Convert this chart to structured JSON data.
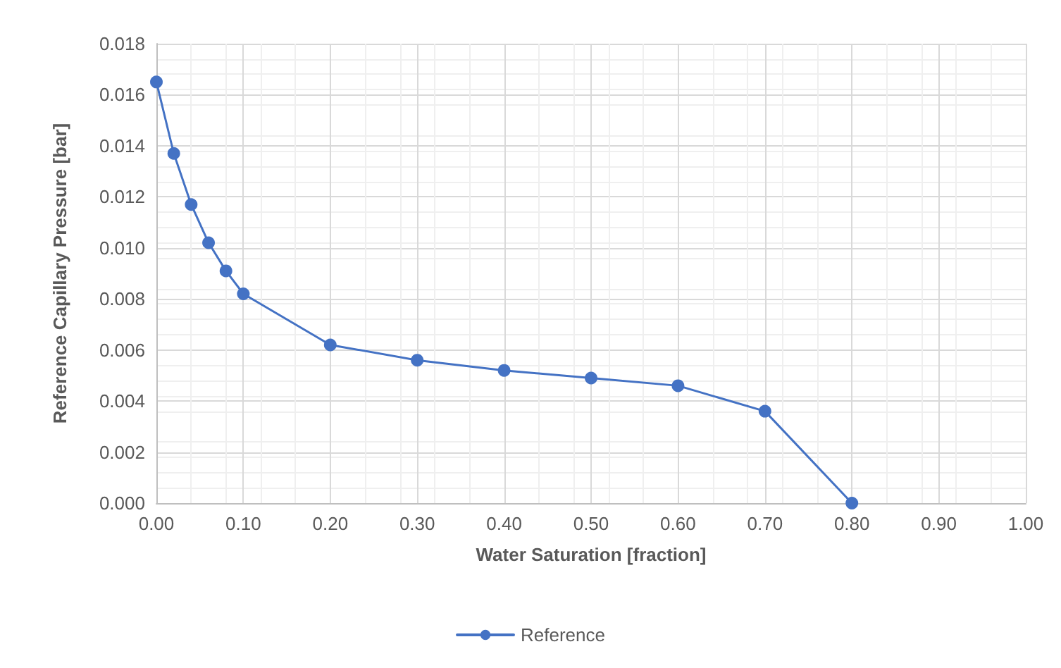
{
  "chart_data": {
    "type": "line",
    "xlabel": "Water Saturation [fraction]",
    "ylabel": "Reference Capillary Pressure [bar]",
    "series": [
      {
        "name": "Reference",
        "color": "#4472c4",
        "x": [
          0,
          0.02,
          0.04,
          0.06,
          0.08,
          0.1,
          0.2,
          0.3,
          0.4,
          0.5,
          0.6,
          0.7,
          0.8
        ],
        "values": [
          0.0165,
          0.0137,
          0.0117,
          0.0102,
          0.0091,
          0.0082,
          0.0062,
          0.0056,
          0.0052,
          0.0049,
          0.0046,
          0.0036,
          0
        ]
      }
    ],
    "xlim": [
      0,
      1
    ],
    "xticks": [
      {
        "value": 0,
        "label": "0.00"
      },
      {
        "value": 0.1,
        "label": "0.10"
      },
      {
        "value": 0.2,
        "label": "0.20"
      },
      {
        "value": 0.3,
        "label": "0.30"
      },
      {
        "value": 0.4,
        "label": "0.40"
      },
      {
        "value": 0.5,
        "label": "0.50"
      },
      {
        "value": 0.6,
        "label": "0.60"
      },
      {
        "value": 0.7,
        "label": "0.70"
      },
      {
        "value": 0.8,
        "label": "0.80"
      },
      {
        "value": 0.9,
        "label": "0.90"
      },
      {
        "value": 1,
        "label": "1.00"
      }
    ],
    "ylim": [
      0,
      0.018
    ],
    "yticks": [
      {
        "value": 0,
        "label": "0.000"
      },
      {
        "value": 0.002,
        "label": "0.002"
      },
      {
        "value": 0.004,
        "label": "0.004"
      },
      {
        "value": 0.006,
        "label": "0.006"
      },
      {
        "value": 0.008,
        "label": "0.008"
      },
      {
        "value": 0.01,
        "label": "0.010"
      },
      {
        "value": 0.012,
        "label": "0.012"
      },
      {
        "value": 0.014,
        "label": "0.014"
      },
      {
        "value": 0.016,
        "label": "0.016"
      },
      {
        "value": 0.018,
        "label": "0.018"
      }
    ],
    "grid": true,
    "legend": "bottom",
    "marker": "circle",
    "line_style": "solid"
  }
}
